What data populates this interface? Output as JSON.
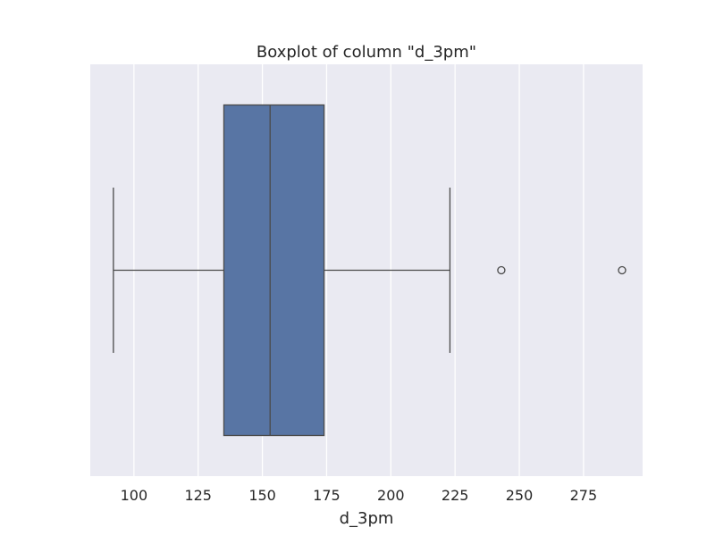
{
  "chart_data": {
    "type": "boxplot",
    "title": "Boxplot of column \"d_3pm\"",
    "xlabel": "d_3pm",
    "ylabel": "",
    "orientation": "horizontal",
    "xlim": [
      83,
      298
    ],
    "xticks": [
      100,
      125,
      150,
      175,
      200,
      225,
      250,
      275
    ],
    "xtick_labels": [
      "100",
      "125",
      "150",
      "175",
      "200",
      "225",
      "250",
      "275"
    ],
    "grid": true,
    "box": {
      "whisker_low": 92,
      "q1": 135,
      "median": 153,
      "q3": 174,
      "whisker_high": 223
    },
    "outliers": [
      243,
      290
    ],
    "colors": {
      "plot_background": "#eaeaf2",
      "grid": "#ffffff",
      "box_fill": "#5875a4",
      "lines": "#4a4a4a",
      "text": "#262626"
    }
  }
}
